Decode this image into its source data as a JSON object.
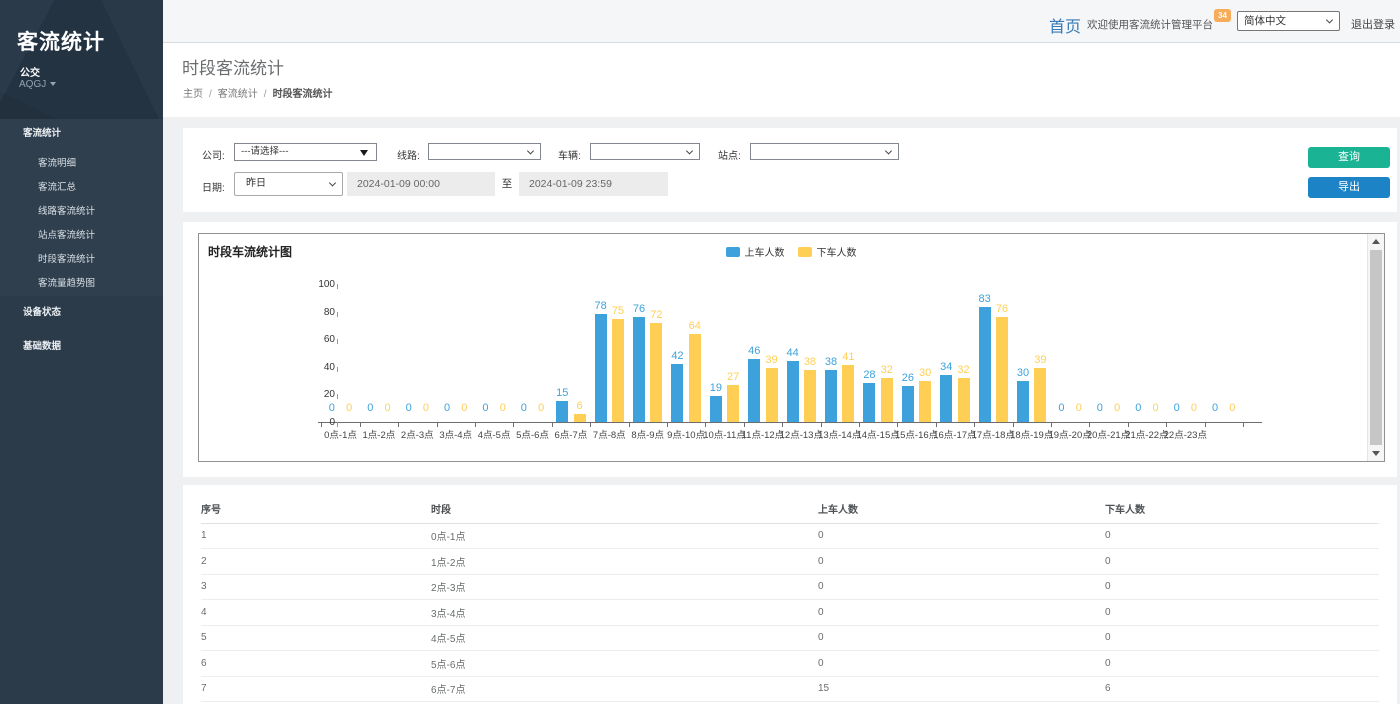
{
  "sidebar": {
    "logo": "客流统计",
    "org": "公交",
    "org_code": "AQGJ",
    "menu_group": {
      "label": "客流统计",
      "children": [
        "客流明细",
        "客流汇总",
        "线路客流统计",
        "站点客流统计",
        "时段客流统计",
        "客流量趋势图"
      ]
    },
    "menu_items": [
      "设备状态",
      "基础数据"
    ]
  },
  "navbar": {
    "home": "首页",
    "welcome": "欢迎使用客流统计管理平台",
    "badge": "34",
    "language": "简体中文",
    "logout": "退出登录"
  },
  "heading": {
    "title": "时段客流统计",
    "breadcrumb": [
      "主页",
      "客流统计",
      "时段客流统计"
    ]
  },
  "filters": {
    "company_label": "公司:",
    "company_value": "---请选择---",
    "line_label": "线路:",
    "vehicle_label": "车辆:",
    "station_label": "站点:",
    "date_label": "日期:",
    "date_preset": "昨日",
    "date_from": "2024-01-09 00:00",
    "to_label": "至",
    "date_to": "2024-01-09 23:59",
    "search_button": "查询",
    "export_button": "导出"
  },
  "chart_data": {
    "type": "bar",
    "title": "时段车流统计图",
    "categories": [
      "0点-1点",
      "1点-2点",
      "2点-3点",
      "3点-4点",
      "4点-5点",
      "5点-6点",
      "6点-7点",
      "7点-8点",
      "8点-9点",
      "9点-10点",
      "10点-11点",
      "11点-12点",
      "12点-13点",
      "13点-14点",
      "14点-15点",
      "15点-16点",
      "16点-17点",
      "17点-18点",
      "18点-19点",
      "19点-20点",
      "20点-21点",
      "21点-22点",
      "22点-23点",
      ""
    ],
    "series": [
      {
        "name": "上车人数",
        "color": "#3da2dc",
        "values": [
          0,
          0,
          0,
          0,
          0,
          0,
          15,
          78,
          76,
          42,
          19,
          46,
          44,
          38,
          28,
          26,
          34,
          83,
          30,
          0,
          0,
          0,
          0,
          0
        ]
      },
      {
        "name": "下车人数",
        "color": "#ffcf55",
        "values": [
          0,
          0,
          0,
          0,
          0,
          0,
          6,
          75,
          72,
          64,
          27,
          39,
          38,
          41,
          32,
          30,
          32,
          76,
          39,
          0,
          0,
          0,
          0,
          0
        ]
      }
    ],
    "ylim": [
      0,
      100
    ],
    "yticks": [
      0,
      20,
      40,
      60,
      80,
      100
    ],
    "legend_position": "top-center",
    "grid": false
  },
  "table": {
    "columns": [
      "序号",
      "时段",
      "上车人数",
      "下车人数"
    ],
    "rows": [
      [
        1,
        "0点-1点",
        0,
        0
      ],
      [
        2,
        "1点-2点",
        0,
        0
      ],
      [
        3,
        "2点-3点",
        0,
        0
      ],
      [
        4,
        "3点-4点",
        0,
        0
      ],
      [
        5,
        "4点-5点",
        0,
        0
      ],
      [
        6,
        "5点-6点",
        0,
        0
      ],
      [
        7,
        "6点-7点",
        15,
        6
      ]
    ]
  }
}
